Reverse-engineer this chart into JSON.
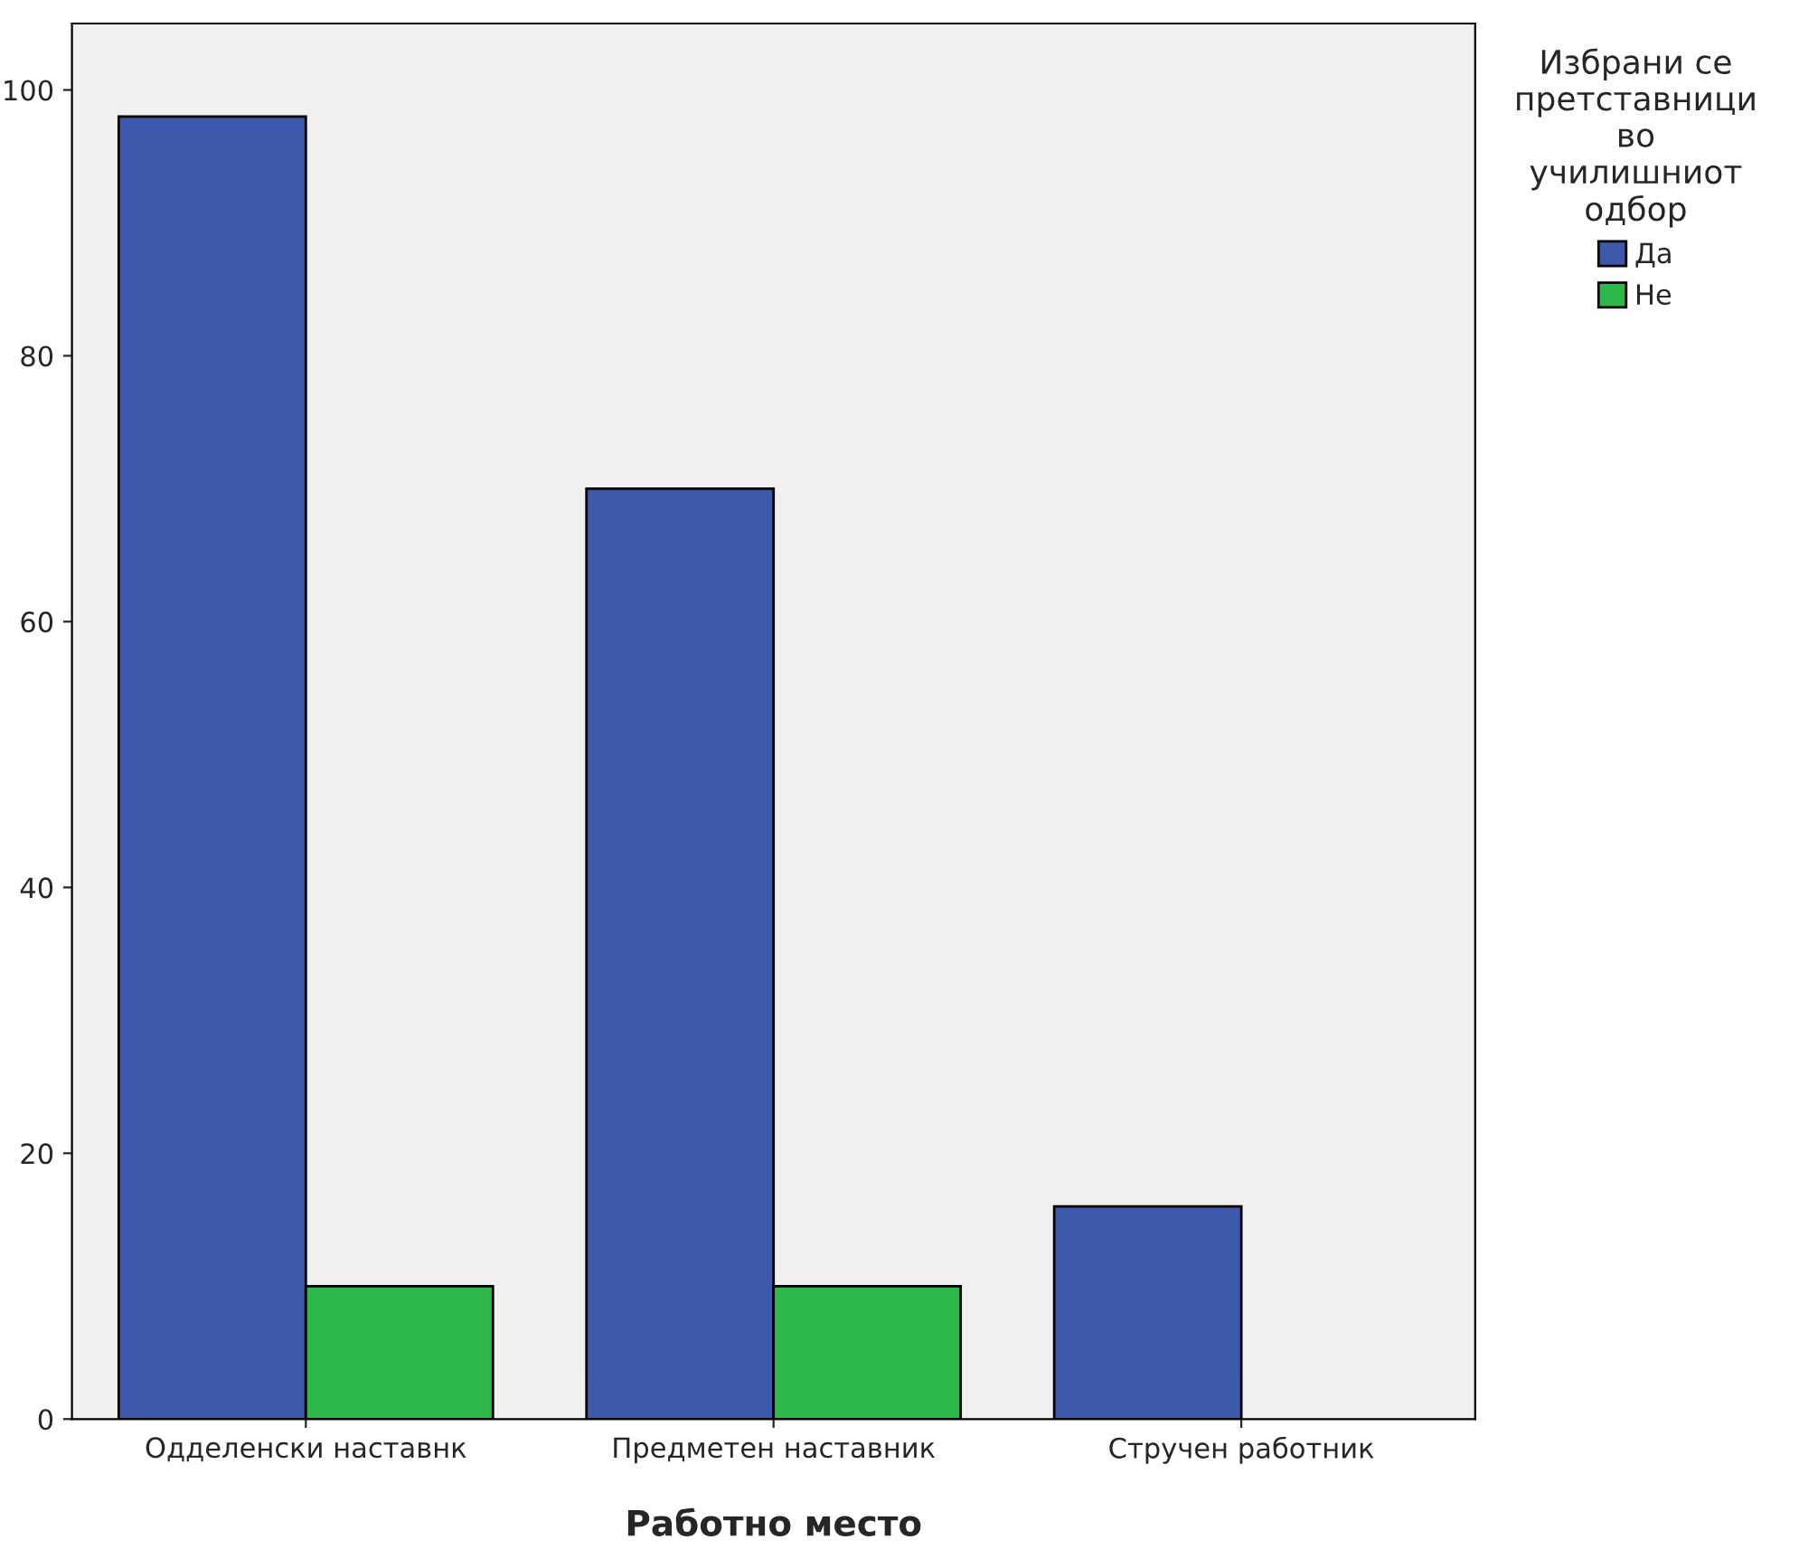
{
  "chart_data": {
    "type": "bar",
    "categories": [
      "Одделенски наставнк",
      "Предметен наставник",
      "Стручен работник"
    ],
    "series": [
      {
        "name": "Да",
        "color": "#3e58ac",
        "values": [
          98,
          70,
          16
        ]
      },
      {
        "name": "Не",
        "color": "#2eb84b",
        "values": [
          10,
          10,
          null
        ]
      }
    ],
    "xlabel": "Работно место",
    "legend_title": "Избрани се\nпретставници\nво\nучилишниот\nодбор",
    "ylim": [
      0,
      105
    ],
    "yticks": [
      0,
      20,
      40,
      60,
      80,
      100
    ],
    "grid": false,
    "legend": "top right"
  }
}
